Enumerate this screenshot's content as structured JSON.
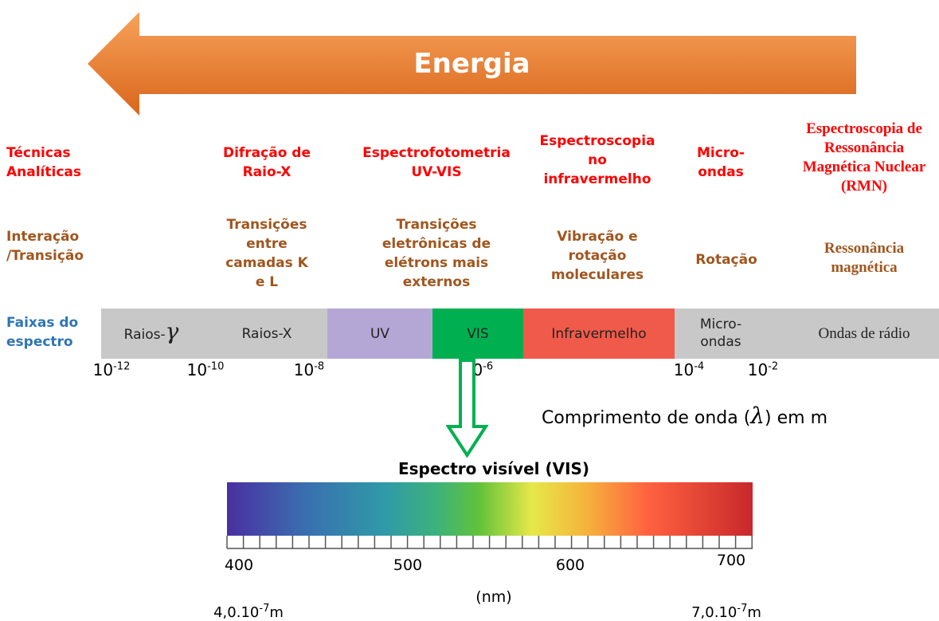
{
  "arrow": {
    "label": "Energia"
  },
  "rows": {
    "techniques": "Técnicas Analíticas",
    "interaction": "Interação /Transição",
    "bands": "Faixas do espectro"
  },
  "techniques": [
    "Difração de Raio-X",
    "Espectrofotometria UV-VIS",
    "Espectroscopia no infravermelho",
    "Micro-ondas",
    "Espectroscopia de Ressonância Magnética Nuclear (RMN)"
  ],
  "interactions": [
    "Transições entre camadas K e L",
    "Transições eletrônicas de elétrons mais externos",
    "Vibração e rotação moleculares",
    "Rotação",
    "Ressonância magnética"
  ],
  "bands": {
    "gamma_prefix": "Raios-",
    "gamma_symbol": "γ",
    "xray": "Raios-X",
    "uv": "UV",
    "vis": "VIS",
    "ir": "Infravermelho",
    "micro": "Micro-ondas",
    "radio": "Ondas de rádio"
  },
  "wavelength_ticks": [
    {
      "base": "10",
      "exp": "-12"
    },
    {
      "base": "10",
      "exp": "-10"
    },
    {
      "base": "10",
      "exp": "-8"
    },
    {
      "base": "10",
      "exp": "-6"
    },
    {
      "base": "10",
      "exp": "-4"
    },
    {
      "base": "10",
      "exp": "-2"
    }
  ],
  "axis_label": {
    "before": "Comprimento de onda (",
    "symbol": "λ",
    "after": ") em m"
  },
  "visible": {
    "title": "Espectro visível (VIS)",
    "ticks": [
      "400",
      "500",
      "600",
      "700"
    ],
    "unit": "(nm)",
    "start": {
      "mantissa": "4,0.10",
      "exp": "-7",
      "unit": "m"
    },
    "end": {
      "mantissa": "7,0.10",
      "exp": "-7",
      "unit": "m"
    }
  }
}
